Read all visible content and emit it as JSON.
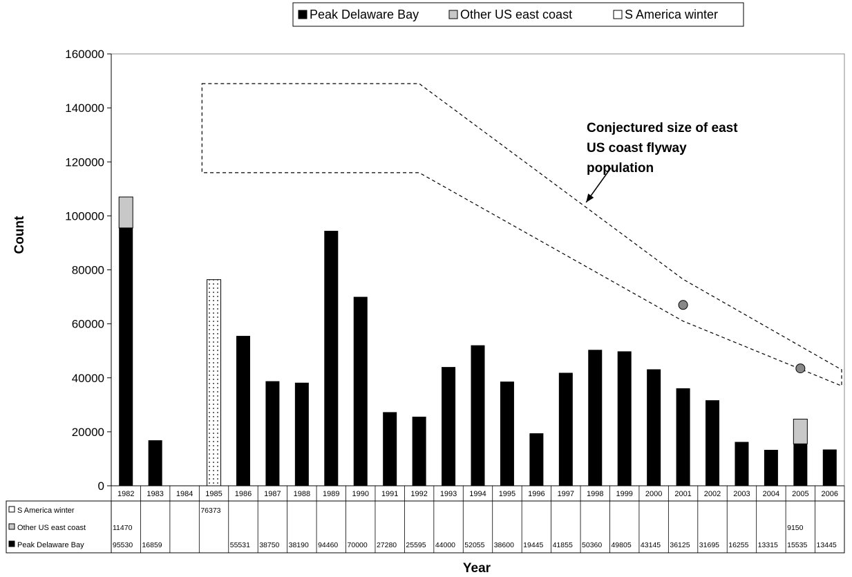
{
  "chart_data": {
    "type": "bar",
    "stacked": true,
    "xlabel": "Year",
    "ylabel": "Count",
    "ylim": [
      0,
      160000
    ],
    "yticks": [
      0,
      20000,
      40000,
      60000,
      80000,
      100000,
      120000,
      140000,
      160000
    ],
    "yticklabels": [
      "0",
      "20000",
      "40000",
      "60000",
      "80000",
      "100000",
      "120000",
      "140000",
      "160000"
    ],
    "legend_position": "top-right",
    "categories": [
      "1982",
      "1983",
      "1984",
      "1985",
      "1986",
      "1987",
      "1988",
      "1989",
      "1990",
      "1991",
      "1992",
      "1993",
      "1994",
      "1995",
      "1996",
      "1997",
      "1998",
      "1999",
      "2000",
      "2001",
      "2002",
      "2003",
      "2004",
      "2005",
      "2006"
    ],
    "series": [
      {
        "name": "Peak Delaware Bay",
        "style": "solid-black",
        "values": [
          95530,
          16859,
          null,
          null,
          55531,
          38750,
          38190,
          94460,
          70000,
          27280,
          25595,
          44000,
          52055,
          38600,
          19445,
          41855,
          50360,
          49805,
          43145,
          36125,
          31695,
          16255,
          13315,
          15535,
          13445
        ],
        "table_values": [
          "95530",
          "16859",
          "",
          "",
          "55531",
          "38750",
          "38190",
          "94460",
          "70000",
          "27280",
          "25595",
          "44000",
          "52055",
          "38600",
          "19445",
          "41855",
          "50360",
          "49805",
          "43145",
          "36125",
          "31695",
          "16255",
          "13315",
          "15535",
          "13445"
        ]
      },
      {
        "name": "Other US east coast",
        "style": "gray",
        "values": [
          11470,
          null,
          null,
          null,
          null,
          null,
          null,
          null,
          null,
          null,
          null,
          null,
          null,
          null,
          null,
          null,
          null,
          null,
          null,
          null,
          null,
          null,
          null,
          9150,
          null
        ],
        "table_values": [
          "11470",
          "",
          "",
          "",
          "",
          "",
          "",
          "",
          "",
          "",
          "",
          "",
          "",
          "",
          "",
          "",
          "",
          "",
          "",
          "",
          "",
          "",
          "",
          "9150",
          ""
        ]
      },
      {
        "name": "S America winter",
        "style": "white-dotted",
        "values": [
          null,
          null,
          null,
          76373,
          null,
          null,
          null,
          null,
          null,
          null,
          null,
          null,
          null,
          null,
          null,
          null,
          null,
          null,
          null,
          null,
          null,
          null,
          null,
          null,
          null
        ],
        "table_values": [
          "",
          "",
          "",
          "76373",
          "",
          "",
          "",
          "",
          "",
          "",
          "",
          "",
          "",
          "",
          "",
          "",
          "",
          "",
          "",
          "",
          "",
          "",
          "",
          "",
          ""
        ]
      }
    ],
    "flyway_envelope": {
      "upper": [
        {
          "x": "1985",
          "y": 149000
        },
        {
          "x": "1992",
          "y": 149000
        },
        {
          "x": "2001",
          "y": 76500
        },
        {
          "x": "2006",
          "y": 43000
        }
      ],
      "lower": [
        {
          "x": "1985",
          "y": 116000
        },
        {
          "x": "1992",
          "y": 116000
        },
        {
          "x": "2001",
          "y": 61000
        },
        {
          "x": "2006",
          "y": 37000
        }
      ]
    },
    "circle_markers": [
      {
        "x": "2001",
        "y": 67000
      },
      {
        "x": "2005",
        "y": 43500
      }
    ],
    "annotation": {
      "text": [
        "Conjectured size of east",
        "US coast flyway",
        "population"
      ],
      "arrow_to": {
        "x": "1998",
        "y": 105000
      }
    },
    "grid": false
  }
}
